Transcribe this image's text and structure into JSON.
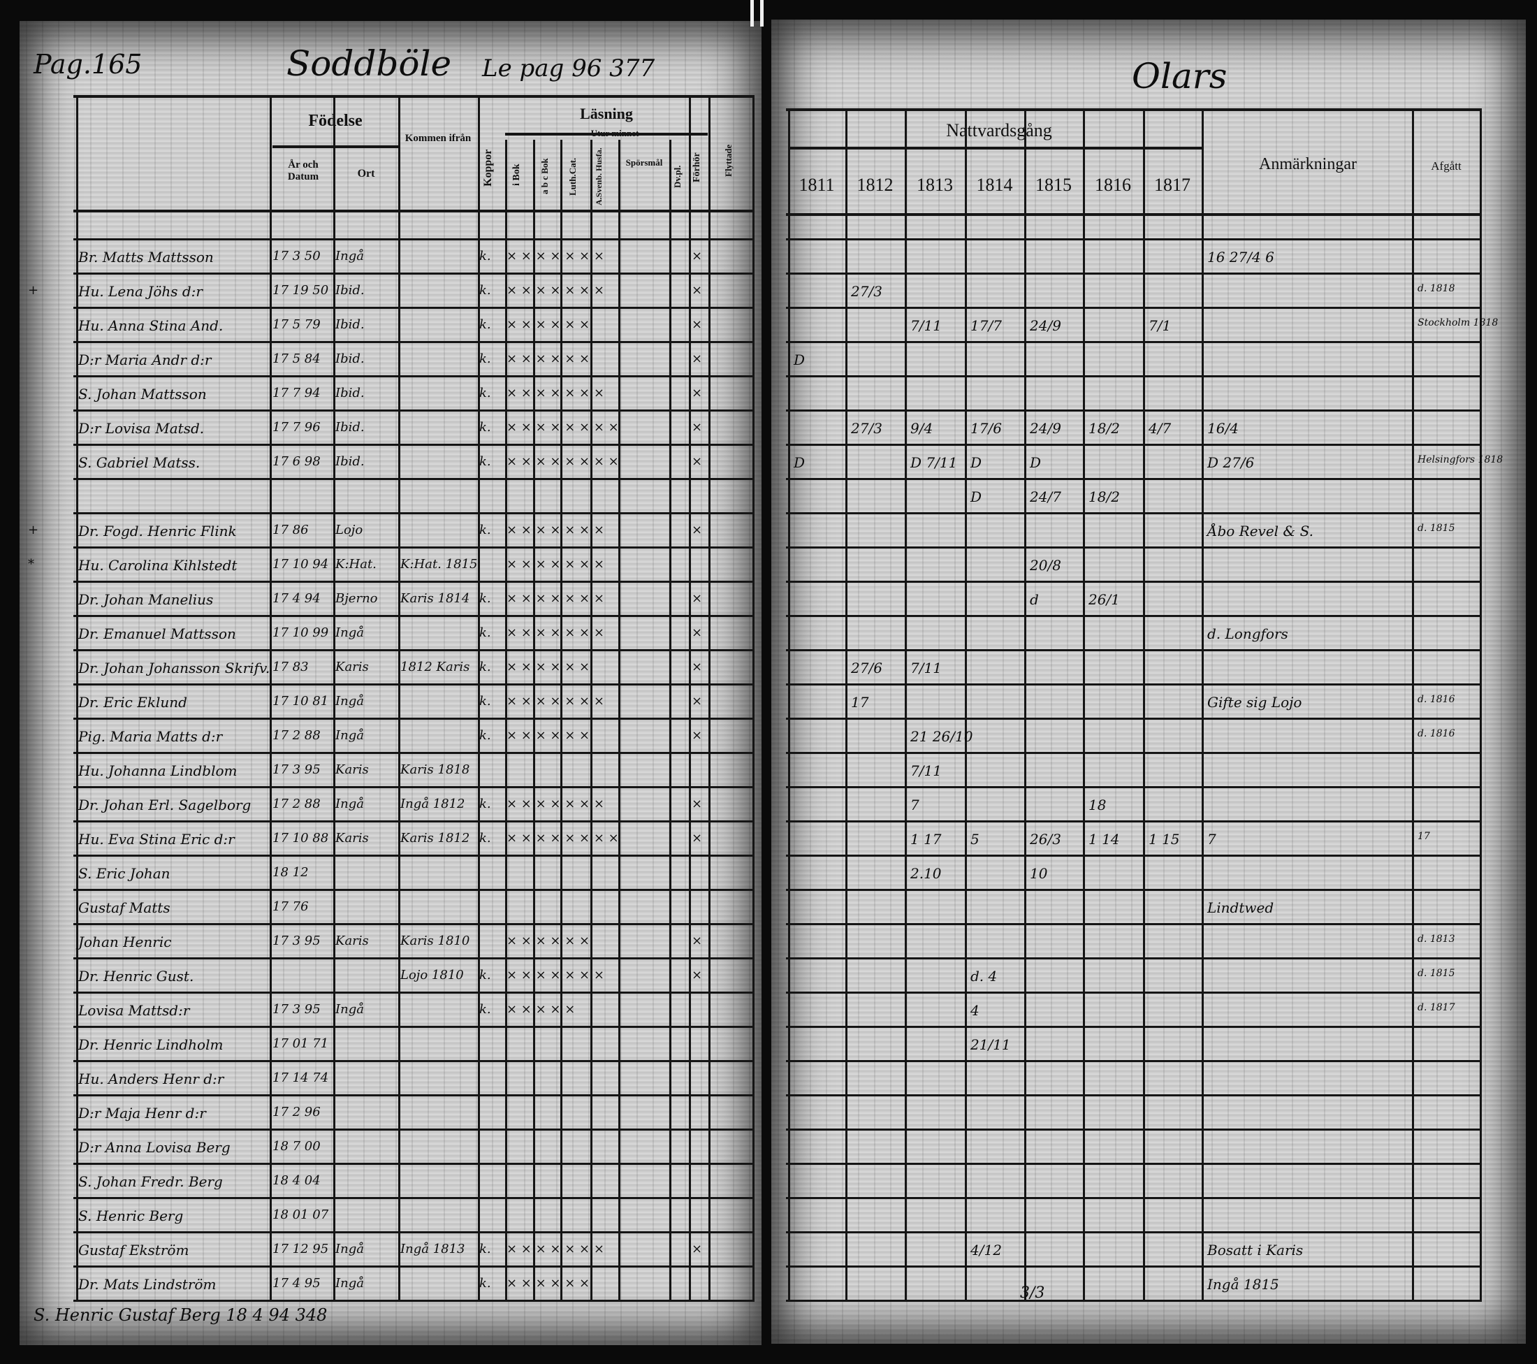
{
  "left_page": {
    "page_label": "Pag.165",
    "village": "Soddböle",
    "reference": "Le pag 96 377",
    "headers": {
      "fodelse": "Födelse",
      "ar_och_datum": "År och Datum",
      "ort": "Ort",
      "kommen_ifran": "Kommen ifrån",
      "koppor": "Koppor",
      "lasning": "Läsning",
      "utur_minnet": "Utur minnet",
      "i_bok": "i Bok",
      "abc_bok": "a b c Bok",
      "luth_cat": "Luth.Cat.",
      "a_sv_husf": "A.Svenb. Husfa.",
      "sporsmal": "Spörsmål",
      "dv_pl": "Dv.pl.",
      "forhor": "Förhör",
      "last_col": "Flyttade"
    },
    "rows": [
      {
        "mark": "",
        "name": "Br. Matts Mattsson",
        "date": "17 3 50",
        "place": "Ingå",
        "from": "",
        "koppor": "k.",
        "marks": "× × × × × × ×",
        "forhor": "×"
      },
      {
        "mark": "+",
        "name": "Hu. Lena Jöhs d:r",
        "date": "17 19 50",
        "place": "Ibid.",
        "from": "",
        "koppor": "k.",
        "marks": "× × × × × × ×",
        "forhor": "×"
      },
      {
        "mark": "",
        "name": "Hu. Anna Stina And.",
        "date": "17 5 79",
        "place": "Ibid.",
        "from": "",
        "koppor": "k.",
        "marks": "× × × × × ×",
        "forhor": "×"
      },
      {
        "mark": "",
        "name": "D:r Maria Andr d:r",
        "date": "17 5 84",
        "place": "Ibid.",
        "from": "",
        "koppor": "k.",
        "marks": "× × × × × ×",
        "forhor": "×"
      },
      {
        "mark": "",
        "name": "S. Johan Mattsson",
        "date": "17 7 94",
        "place": "Ibid.",
        "from": "",
        "koppor": "k.",
        "marks": "× × × × × × ×",
        "forhor": "×"
      },
      {
        "mark": "",
        "name": "D:r Lovisa Matsd.",
        "date": "17 7 96",
        "place": "Ibid.",
        "from": "",
        "koppor": "k.",
        "marks": "× × × × × × × ×",
        "forhor": "×"
      },
      {
        "mark": "",
        "name": "S. Gabriel Matss.",
        "date": "17 6 98",
        "place": "Ibid.",
        "from": "",
        "koppor": "k.",
        "marks": "× × × × × × × ×",
        "forhor": "×"
      },
      {
        "mark": "",
        "name": "",
        "date": "",
        "place": "",
        "from": "",
        "koppor": "",
        "marks": "",
        "forhor": ""
      },
      {
        "mark": "+",
        "name": "Dr. Fogd. Henric Flink",
        "date": "17 86",
        "place": "Lojo",
        "from": "",
        "koppor": "k.",
        "marks": "× × × × × × ×",
        "forhor": "×"
      },
      {
        "mark": "*",
        "name": "Hu. Carolina Kihlstedt",
        "date": "17 10 94",
        "place": "K:Hat.",
        "from": "K:Hat. 1815",
        "koppor": "",
        "marks": "× × × × × × ×",
        "forhor": ""
      },
      {
        "mark": "",
        "name": "Dr. Johan Manelius",
        "date": "17 4 94",
        "place": "Bjerno",
        "from": "Karis 1814",
        "koppor": "k.",
        "marks": "× × × × × × ×",
        "forhor": "×"
      },
      {
        "mark": "",
        "name": "Dr. Emanuel Mattsson",
        "date": "17 10 99",
        "place": "Ingå",
        "from": "",
        "koppor": "k.",
        "marks": "× × × × × × ×",
        "forhor": "×"
      },
      {
        "mark": "",
        "name": "Dr. Johan Johansson Skrifv.",
        "date": "17 83",
        "place": "Karis",
        "from": "1812 Karis",
        "koppor": "k.",
        "marks": "× × × × × ×",
        "forhor": "×"
      },
      {
        "mark": "",
        "name": "Dr. Eric Eklund",
        "date": "17 10 81",
        "place": "Ingå",
        "from": "",
        "koppor": "k.",
        "marks": "× × × × × × ×",
        "forhor": "×"
      },
      {
        "mark": "",
        "name": "Pig. Maria Matts d:r",
        "date": "17 2 88",
        "place": "Ingå",
        "from": "",
        "koppor": "k.",
        "marks": "× × × × × ×",
        "forhor": "×"
      },
      {
        "mark": "",
        "name": "Hu. Johanna Lindblom",
        "date": "17 3 95",
        "place": "Karis",
        "from": "Karis 1818",
        "koppor": "",
        "marks": "",
        "forhor": ""
      },
      {
        "mark": "",
        "name": "Dr. Johan Erl. Sagelborg",
        "date": "17 2 88",
        "place": "Ingå",
        "from": "Ingå 1812",
        "koppor": "k.",
        "marks": "× × × × × × ×",
        "forhor": "×"
      },
      {
        "mark": "",
        "name": "Hu. Eva Stina Eric d:r",
        "date": "17 10 88",
        "place": "Karis",
        "from": "Karis 1812",
        "koppor": "k.",
        "marks": "× × × × × × × ×",
        "forhor": "×"
      },
      {
        "mark": "",
        "name": "S. Eric Johan",
        "date": "18 12",
        "place": "",
        "from": "",
        "koppor": "",
        "marks": "",
        "forhor": ""
      },
      {
        "mark": "",
        "name": "Gustaf Matts",
        "date": "17 76",
        "place": "",
        "from": "",
        "koppor": "",
        "marks": "",
        "forhor": ""
      },
      {
        "mark": "",
        "name": "Johan Henric",
        "date": "17 3 95",
        "place": "Karis",
        "from": "Karis 1810",
        "koppor": "",
        "marks": "× × × × × ×",
        "forhor": "×"
      },
      {
        "mark": "",
        "name": "Dr. Henric Gust.",
        "date": "",
        "place": "",
        "from": "Lojo 1810",
        "koppor": "k.",
        "marks": "× × × × × × ×",
        "forhor": "×"
      },
      {
        "mark": "",
        "name": "Lovisa Mattsd:r",
        "date": "17 3 95",
        "place": "Ingå",
        "from": "",
        "koppor": "k.",
        "marks": "× × × × ×",
        "forhor": ""
      },
      {
        "mark": "",
        "name": "Dr. Henric Lindholm",
        "date": "17 01 71",
        "place": "",
        "from": "",
        "koppor": "",
        "marks": "",
        "forhor": ""
      },
      {
        "mark": "",
        "name": "Hu. Anders Henr d:r",
        "date": "17 14 74",
        "place": "",
        "from": "",
        "koppor": "",
        "marks": "",
        "forhor": ""
      },
      {
        "mark": "",
        "name": "D:r Maja Henr d:r",
        "date": "17 2 96",
        "place": "",
        "from": "",
        "koppor": "",
        "marks": "",
        "forhor": ""
      },
      {
        "mark": "",
        "name": "D:r Anna Lovisa Berg",
        "date": "18 7 00",
        "place": "",
        "from": "",
        "koppor": "",
        "marks": "",
        "forhor": ""
      },
      {
        "mark": "",
        "name": "S. Johan Fredr. Berg",
        "date": "18 4 04",
        "place": "",
        "from": "",
        "koppor": "",
        "marks": "",
        "forhor": ""
      },
      {
        "mark": "",
        "name": "S. Henric Berg",
        "date": "18 01 07",
        "place": "",
        "from": "",
        "koppor": "",
        "marks": "",
        "forhor": ""
      },
      {
        "mark": "",
        "name": "Gustaf Ekström",
        "date": "17 12 95",
        "place": "Ingå",
        "from": "Ingå 1813",
        "koppor": "k.",
        "marks": "× × × × × × ×",
        "forhor": "×"
      },
      {
        "mark": "",
        "name": "Dr. Mats Lindström",
        "date": "17 4 95",
        "place": "Ingå",
        "from": "",
        "koppor": "k.",
        "marks": "× × × × × ×",
        "forhor": ""
      }
    ],
    "footer_line": "S. Henric Gustaf Berg   18 4 94   348"
  },
  "right_page": {
    "village": "Olars",
    "headers": {
      "nattvardsgang": "Nattvardsgång",
      "years": [
        "1811",
        "1812",
        "1813",
        "1814",
        "1815",
        "1816",
        "1817"
      ],
      "anmarkningar": "Anmärkningar",
      "afgatt": "Afgått"
    },
    "entries": [
      {
        "row": 1,
        "col": "notes",
        "text": "16 27/4 6"
      },
      {
        "row": 2,
        "col": "1812",
        "text": "27/3"
      },
      {
        "row": 2,
        "col": "afgatt",
        "text": "d. 1818"
      },
      {
        "row": 3,
        "col": "1813",
        "text": "7/11"
      },
      {
        "row": 3,
        "col": "1814",
        "text": "17/7"
      },
      {
        "row": 3,
        "col": "1815",
        "text": "24/9"
      },
      {
        "row": 3,
        "col": "1817",
        "text": "7/1"
      },
      {
        "row": 3,
        "col": "afgatt",
        "text": "Stockholm 1818"
      },
      {
        "row": 4,
        "col": "1811",
        "text": "D"
      },
      {
        "row": 6,
        "col": "1812",
        "text": "27/3"
      },
      {
        "row": 6,
        "col": "1813",
        "text": "9/4"
      },
      {
        "row": 6,
        "col": "1814",
        "text": "17/6"
      },
      {
        "row": 6,
        "col": "1815",
        "text": "24/9"
      },
      {
        "row": 6,
        "col": "1816",
        "text": "18/2"
      },
      {
        "row": 6,
        "col": "1817",
        "text": "4/7"
      },
      {
        "row": 6,
        "col": "notes",
        "text": "16/4"
      },
      {
        "row": 7,
        "col": "1811",
        "text": "D"
      },
      {
        "row": 7,
        "col": "1813",
        "text": "D 7/11"
      },
      {
        "row": 7,
        "col": "1814",
        "text": "D"
      },
      {
        "row": 7,
        "col": "1815",
        "text": "D"
      },
      {
        "row": 7,
        "col": "notes",
        "text": "D 27/6"
      },
      {
        "row": 7,
        "col": "afgatt",
        "text": "Helsingfors 1818"
      },
      {
        "row": 8,
        "col": "1814",
        "text": "D"
      },
      {
        "row": 8,
        "col": "1815",
        "text": "24/7"
      },
      {
        "row": 8,
        "col": "1816",
        "text": "18/2"
      },
      {
        "row": 9,
        "col": "notes",
        "text": "Åbo Revel & S."
      },
      {
        "row": 9,
        "col": "afgatt",
        "text": "d. 1815"
      },
      {
        "row": 10,
        "col": "1815",
        "text": "20/8"
      },
      {
        "row": 11,
        "col": "1815",
        "text": "d"
      },
      {
        "row": 11,
        "col": "1816",
        "text": "26/1"
      },
      {
        "row": 12,
        "col": "notes",
        "text": "d. Longfors"
      },
      {
        "row": 13,
        "col": "1812",
        "text": "27/6"
      },
      {
        "row": 13,
        "col": "1813",
        "text": "7/11"
      },
      {
        "row": 14,
        "col": "1812",
        "text": "17"
      },
      {
        "row": 14,
        "col": "notes",
        "text": "Gifte sig Lojo"
      },
      {
        "row": 14,
        "col": "afgatt",
        "text": "d. 1816"
      },
      {
        "row": 15,
        "col": "1813",
        "text": "21 26/10"
      },
      {
        "row": 15,
        "col": "afgatt",
        "text": "d. 1816"
      },
      {
        "row": 16,
        "col": "1813",
        "text": "7/11"
      },
      {
        "row": 17,
        "col": "1813",
        "text": "7"
      },
      {
        "row": 17,
        "col": "1816",
        "text": "18"
      },
      {
        "row": 18,
        "col": "1813",
        "text": "1 17"
      },
      {
        "row": 18,
        "col": "1814",
        "text": "5"
      },
      {
        "row": 18,
        "col": "1815",
        "text": "26/3"
      },
      {
        "row": 18,
        "col": "1816",
        "text": "1 14"
      },
      {
        "row": 18,
        "col": "1817",
        "text": "1 15"
      },
      {
        "row": 18,
        "col": "notes",
        "text": "7"
      },
      {
        "row": 18,
        "col": "afgatt",
        "text": "17"
      },
      {
        "row": 19,
        "col": "1813",
        "text": "2.10"
      },
      {
        "row": 19,
        "col": "1815",
        "text": "10"
      },
      {
        "row": 20,
        "col": "notes",
        "text": "Lindtwed"
      },
      {
        "row": 21,
        "col": "afgatt",
        "text": "d. 1813"
      },
      {
        "row": 22,
        "col": "1814",
        "text": "d. 4"
      },
      {
        "row": 22,
        "col": "afgatt",
        "text": "d. 1815"
      },
      {
        "row": 23,
        "col": "1814",
        "text": "4"
      },
      {
        "row": 23,
        "col": "afgatt",
        "text": "d. 1817"
      },
      {
        "row": 24,
        "col": "1814",
        "text": "21/11"
      },
      {
        "row": 30,
        "col": "1814",
        "text": "4/12"
      },
      {
        "row": 30,
        "col": "notes",
        "text": "Bosatt i Karis"
      },
      {
        "row": 31,
        "col": "notes",
        "text": "Ingå 1815"
      }
    ],
    "footer_marks": "3/3"
  }
}
